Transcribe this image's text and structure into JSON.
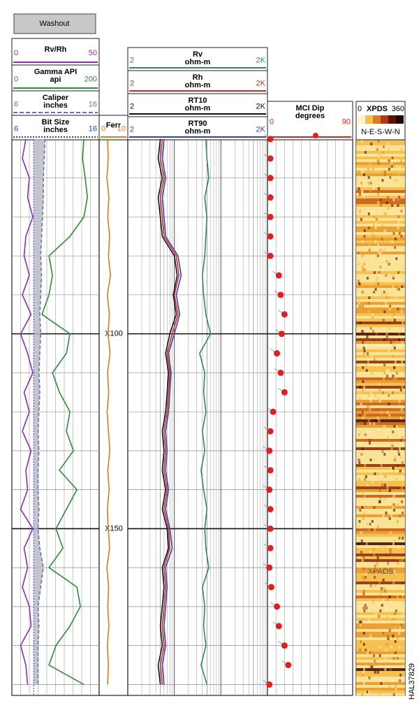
{
  "washout": "Washout",
  "depth": {
    "range": [
      50.2,
      192.8
    ],
    "labels": [
      {
        "value": 100,
        "label": "X100"
      },
      {
        "value": 150,
        "label": "X150"
      }
    ]
  },
  "samples": [
    50,
    55,
    60,
    65,
    70,
    75,
    80,
    85,
    90,
    95,
    100,
    105,
    110,
    115,
    120,
    125,
    130,
    135,
    140,
    145,
    150,
    155,
    160,
    165,
    170,
    175,
    180,
    185,
    190
  ],
  "tracks": [
    {
      "curves": [
        {
          "name": "Rv/Rh",
          "color": "#8b2fb0",
          "left": 0,
          "right": 50,
          "values": [
            8,
            6,
            10,
            9,
            12,
            8,
            7,
            10,
            6,
            11,
            5,
            9,
            12,
            7,
            10,
            6,
            11,
            8,
            9,
            5,
            12,
            7,
            9,
            6,
            10,
            11,
            5,
            8,
            9
          ]
        },
        {
          "name": "Gamma API",
          "unit": "api",
          "color": "#2e8b3a",
          "left": 0,
          "right": 200,
          "values": [
            165,
            162,
            168,
            173,
            165,
            133,
            85,
            93,
            85,
            69,
            133,
            125,
            93,
            109,
            133,
            125,
            141,
            109,
            149,
            125,
            101,
            117,
            85,
            149,
            157,
            133,
            101,
            85,
            165
          ]
        },
        {
          "name": "Caliper",
          "unit": "inches",
          "color": "#6670c0",
          "dash": true,
          "left": 6,
          "right": 16,
          "values": [
            9.8,
            9.7,
            9.6,
            9.6,
            9.5,
            9.4,
            9.3,
            9.4,
            9.3,
            9.2,
            9.3,
            9.2,
            9.1,
            9.2,
            9.1,
            9.0,
            9.1,
            9.0,
            9.0,
            9.1,
            9.0,
            9.2,
            9.6,
            9.3,
            9.0,
            9.1,
            9.0,
            9.0,
            9.0
          ]
        },
        {
          "name": "Bit Size",
          "unit": "inches",
          "color": "#3040a0",
          "left": 6,
          "right": 16,
          "value": 8.5
        }
      ]
    },
    {
      "curves": [
        {
          "name": "Ferr",
          "color": "#e07a1a",
          "left": 0,
          "right": 10,
          "values": [
            2.5,
            2.8,
            2.2,
            3.1,
            2.6,
            3.4,
            2.9,
            3.8,
            2.4,
            3.3,
            2.7,
            3.6,
            2.5,
            3.0,
            2.3,
            2.9,
            3.5,
            2.6,
            3.2,
            2.4,
            2.8,
            3.4,
            2.2,
            3.0,
            2.6,
            3.1,
            2.4,
            2.9,
            2.5
          ]
        }
      ]
    },
    {
      "log": true,
      "curves": [
        {
          "name": "Rv",
          "unit": "ohm-m",
          "color": "#2e8b57",
          "left": 2,
          "right": {
            "value": 2000,
            "label": "2K"
          },
          "values": [
            95,
            100,
            110,
            90,
            100,
            95,
            90,
            80,
            85,
            95,
            120,
            70,
            90,
            85,
            95,
            80,
            90,
            75,
            85,
            100,
            90,
            95,
            110,
            80,
            90,
            85,
            95,
            75,
            100
          ]
        },
        {
          "name": "Rh",
          "unit": "ohm-m",
          "color": "#d42a2a",
          "left": 2,
          "right": {
            "value": 2000,
            "label": "2K"
          },
          "values": [
            11,
            10,
            12,
            10,
            11,
            12,
            22,
            25,
            20,
            24,
            18,
            14,
            16,
            15,
            14,
            12,
            13,
            12,
            14,
            12,
            15,
            16,
            12,
            13,
            12,
            11,
            12,
            10,
            11
          ]
        },
        {
          "name": "RT10",
          "unit": "ohm-m",
          "color": "#111111",
          "left": 2,
          "right": {
            "value": 2000,
            "label": "2K"
          },
          "values": [
            10,
            9,
            11,
            9,
            10,
            11,
            20,
            23,
            19,
            22,
            16,
            13,
            15,
            14,
            13,
            11,
            12,
            11,
            13,
            11,
            14,
            15,
            11,
            12,
            11,
            10,
            11,
            9,
            10
          ]
        },
        {
          "name": "RT90",
          "unit": "ohm-m",
          "color": "#3444b8",
          "left": 2,
          "right": {
            "value": 2000,
            "label": "2K"
          },
          "values": [
            12,
            11,
            13,
            11,
            12,
            13,
            24,
            28,
            22,
            26,
            20,
            15,
            17,
            16,
            15,
            13,
            14,
            13,
            15,
            13,
            16,
            18,
            13,
            14,
            13,
            12,
            13,
            11,
            12
          ]
        }
      ]
    }
  ],
  "dip": {
    "name": "MCI Dip",
    "unit": "degrees",
    "color": "#e0201f",
    "left": 0,
    "right": 90,
    "values": [
      3,
      3,
      3,
      3,
      3,
      3,
      3,
      12,
      14,
      18,
      15,
      10,
      14,
      18,
      6,
      3,
      2,
      3,
      2,
      3,
      3,
      3,
      2,
      4,
      10,
      12,
      18,
      22,
      2
    ]
  },
  "image": {
    "name": "XPDS",
    "left": 0,
    "right": 360,
    "orientation": "N-E-S-W-N",
    "overlay": "XPADS"
  },
  "figure_id": "HAL37829"
}
